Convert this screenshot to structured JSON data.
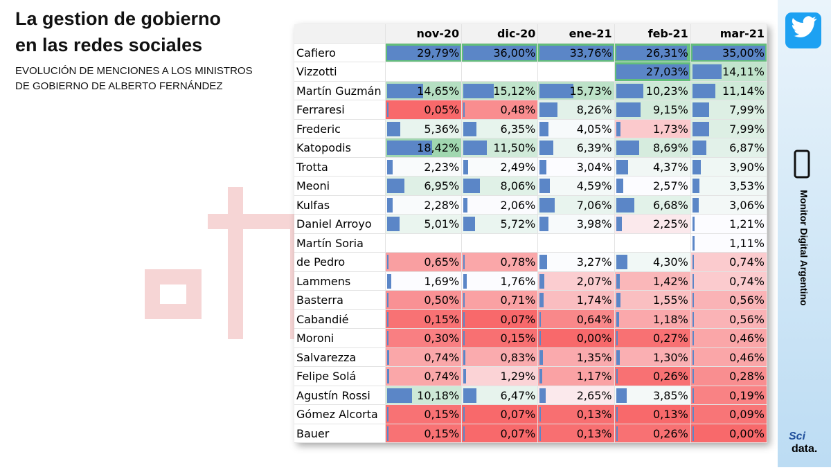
{
  "header": {
    "title_line1": "La gestion de gobierno",
    "title_line2": "en las redes sociales",
    "subtitle_line1": "EVOLUCIÓN DE MENCIONES A LOS MINISTROS",
    "subtitle_line2": "DE GOBIERNO  DE ALBERTO FERNÁNDEZ"
  },
  "sidebar": {
    "brand": "Monitor Digital Argentino",
    "logo_top": "Sci",
    "logo_bottom": "data."
  },
  "table": {
    "columns": [
      "nov-20",
      "dic-20",
      "ene-21",
      "feb-21",
      "mar-21"
    ],
    "rows": [
      [
        "Cafiero",
        "29,79%",
        "36,00%",
        "33,76%",
        "26,31%",
        "35,00%"
      ],
      [
        "Vizzotti",
        null,
        null,
        null,
        "27,03%",
        "14,11%"
      ],
      [
        "Martín Guzmán",
        "14,65%",
        "15,12%",
        "15,73%",
        "10,23%",
        "11,14%"
      ],
      [
        "Ferraresi",
        "0,05%",
        "0,48%",
        "8,26%",
        "9,15%",
        "7,99%"
      ],
      [
        "Frederic",
        "5,36%",
        "6,35%",
        "4,05%",
        "1,73%",
        "7,99%"
      ],
      [
        "Katopodis",
        "18,42%",
        "11,50%",
        "6,39%",
        "8,69%",
        "6,87%"
      ],
      [
        "Trotta",
        "2,23%",
        "2,49%",
        "3,04%",
        "4,37%",
        "3,90%"
      ],
      [
        "Meoni",
        "6,95%",
        "8,06%",
        "4,59%",
        "2,57%",
        "3,53%"
      ],
      [
        "Kulfas",
        "2,28%",
        "2,06%",
        "7,06%",
        "6,68%",
        "3,06%"
      ],
      [
        "Daniel Arroyo",
        "5,01%",
        "5,72%",
        "3,98%",
        "2,25%",
        "1,21%"
      ],
      [
        "Martín Soria",
        null,
        null,
        null,
        null,
        "1,11%"
      ],
      [
        "de Pedro",
        "0,65%",
        "0,78%",
        "3,27%",
        "4,30%",
        "0,74%"
      ],
      [
        "Lammens",
        "1,69%",
        "1,76%",
        "2,07%",
        "1,42%",
        "0,74%"
      ],
      [
        "Basterra",
        "0,50%",
        "0,71%",
        "1,74%",
        "1,55%",
        "0,56%"
      ],
      [
        "Cabandié",
        "0,15%",
        "0,07%",
        "0,64%",
        "1,18%",
        "0,56%"
      ],
      [
        "Moroni",
        "0,30%",
        "0,15%",
        "0,00%",
        "0,27%",
        "0,46%"
      ],
      [
        "Salvarezza",
        "0,74%",
        "0,83%",
        "1,35%",
        "1,30%",
        "0,46%"
      ],
      [
        "Felipe Solá",
        "0,74%",
        "1,29%",
        "1,17%",
        "0,26%",
        "0,28%"
      ],
      [
        "Agustín Rossi",
        "10,18%",
        "6,47%",
        "2,65%",
        "3,85%",
        "0,19%"
      ],
      [
        "Gómez Alcorta",
        "0,15%",
        "0,07%",
        "0,13%",
        "0,13%",
        "0,09%"
      ],
      [
        "Bauer",
        "0,15%",
        "0,07%",
        "0,13%",
        "0,26%",
        "0,00%"
      ]
    ]
  }
}
